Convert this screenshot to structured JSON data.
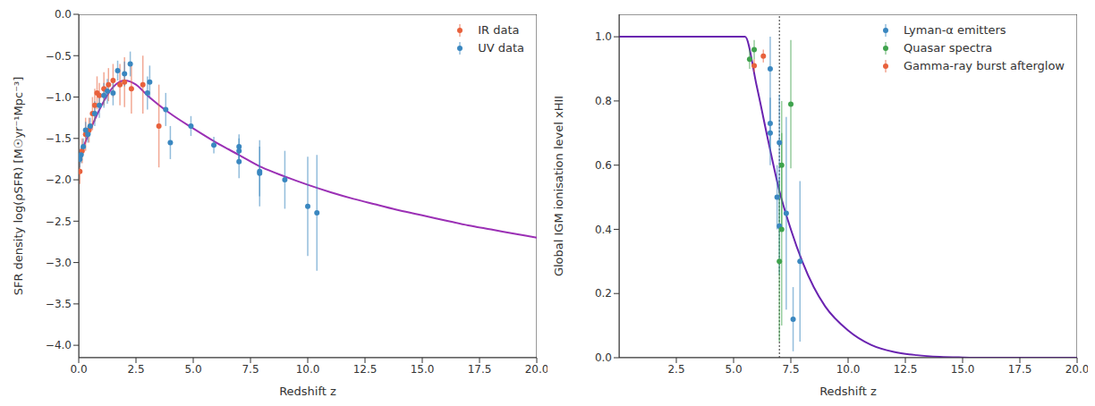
{
  "chart_data": [
    {
      "type": "scatter",
      "x_label": "Redshift z",
      "y_label": "SFR density log(ρSFR) [M☉yr⁻¹Mpc⁻³]",
      "xlim": [
        0,
        20
      ],
      "xticks": [
        {
          "value": 0,
          "label": "0.0"
        },
        2.5,
        {
          "value": 5,
          "label": "5.0"
        },
        7.5,
        {
          "value": 10,
          "label": "10.0"
        },
        12.5,
        {
          "value": 15,
          "label": "15.0"
        },
        17.5,
        {
          "value": 20,
          "label": "20.0"
        }
      ],
      "ylim": [
        -4.15,
        0
      ],
      "yticks": [
        {
          "value": -4,
          "label": "−4.0"
        },
        {
          "value": -3.5,
          "label": "−3.5"
        },
        {
          "value": -3,
          "label": "−3.0"
        },
        {
          "value": -2.5,
          "label": "−2.5"
        },
        {
          "value": -2,
          "label": "−2.0"
        },
        {
          "value": -1.5,
          "label": "−1.5"
        },
        {
          "value": -1,
          "label": "−1.0"
        },
        {
          "value": -0.5,
          "label": "−0.5"
        },
        {
          "value": 0,
          "label": "0.0"
        }
      ],
      "grid": false,
      "legend": "upper right",
      "series": [
        {
          "type": "line",
          "color": "#9b30b5",
          "marker": "none",
          "line_style": "solid",
          "x": [
            0,
            0.5,
            1,
            1.5,
            2,
            2.5,
            3,
            4,
            5,
            6,
            7,
            8,
            9,
            10,
            11,
            12,
            13,
            14,
            15,
            16,
            17,
            18,
            19,
            20
          ],
          "values": [
            -1.75,
            -1.4,
            -1.1,
            -0.88,
            -0.8,
            -0.85,
            -0.98,
            -1.2,
            -1.38,
            -1.55,
            -1.7,
            -1.85,
            -1.96,
            -2.06,
            -2.15,
            -2.23,
            -2.3,
            -2.37,
            -2.43,
            -2.49,
            -2.55,
            -2.6,
            -2.65,
            -2.7
          ]
        },
        {
          "name": "IR data",
          "type": "scatter",
          "color": "#e8613c",
          "marker": "circle",
          "x": [
            0.05,
            0.15,
            0.3,
            0.45,
            0.6,
            0.7,
            0.8,
            0.9,
            1.1,
            1.3,
            1.5,
            1.8,
            2.0,
            2.3,
            2.8,
            3.5
          ],
          "values": [
            -1.9,
            -1.65,
            -1.45,
            -1.4,
            -1.2,
            -1.1,
            -0.95,
            -0.98,
            -0.9,
            -0.85,
            -0.8,
            -0.85,
            -0.82,
            -0.9,
            -0.85,
            -1.35
          ],
          "errors": [
            0.15,
            0.15,
            0.2,
            0.15,
            0.2,
            0.2,
            0.2,
            0.15,
            0.2,
            0.2,
            0.2,
            0.25,
            0.3,
            0.3,
            0.35,
            0.5
          ]
        },
        {
          "name": "UV data",
          "type": "scatter",
          "color": "#3a87c0",
          "marker": "circle",
          "x": [
            0.05,
            0.1,
            0.2,
            0.3,
            0.4,
            0.5,
            0.7,
            0.9,
            1.1,
            1.25,
            1.5,
            1.7,
            2.0,
            2.25,
            3.0,
            3.1,
            3.8,
            4.0,
            4.9,
            5.9,
            7.0,
            7.0,
            7.0,
            7.9,
            7.9,
            9.0,
            10.0,
            10.4
          ],
          "values": [
            -1.75,
            -1.7,
            -1.6,
            -1.4,
            -1.45,
            -1.35,
            -1.2,
            -1.1,
            -0.98,
            -0.93,
            -0.95,
            -0.68,
            -0.72,
            -0.6,
            -0.95,
            -0.82,
            -1.15,
            -1.55,
            -1.35,
            -1.58,
            -1.6,
            -1.65,
            -1.78,
            -1.9,
            -1.92,
            -2.0,
            -2.32,
            -2.4
          ],
          "errors": [
            0.1,
            0.1,
            0.1,
            0.1,
            0.1,
            0.1,
            0.15,
            0.15,
            0.15,
            0.15,
            0.15,
            0.12,
            0.15,
            0.15,
            0.2,
            0.2,
            0.2,
            0.2,
            0.12,
            0.1,
            0.15,
            0.15,
            0.2,
            0.3,
            0.4,
            0.35,
            0.6,
            0.7
          ]
        }
      ]
    },
    {
      "type": "scatter",
      "x_label": "Redshift z",
      "y_label": "Global IGM ionisation level xHII",
      "xlim": [
        0,
        20
      ],
      "xticks": [
        2.5,
        {
          "value": 5,
          "label": "5.0"
        },
        7.5,
        {
          "value": 10,
          "label": "10.0"
        },
        12.5,
        {
          "value": 15,
          "label": "15.0"
        },
        17.5,
        {
          "value": 20,
          "label": "20.0"
        }
      ],
      "ylim": [
        0,
        1.07
      ],
      "yticks": [
        {
          "value": 0,
          "label": "0.0"
        },
        0.2,
        0.4,
        0.6,
        0.8,
        {
          "value": 1,
          "label": "1.0"
        }
      ],
      "grid": false,
      "legend": "upper right",
      "vline": 7,
      "series": [
        {
          "type": "line",
          "color": "#6a23b0",
          "marker": "none",
          "line_style": "solid",
          "x": [
            0,
            5.5,
            6,
            6.5,
            7,
            7.5,
            8,
            8.5,
            9,
            10,
            11,
            12,
            13,
            14,
            15,
            16,
            20
          ],
          "values": [
            1,
            1,
            0.85,
            0.68,
            0.52,
            0.4,
            0.3,
            0.22,
            0.16,
            0.085,
            0.04,
            0.018,
            0.008,
            0.003,
            0.001,
            0,
            0
          ]
        },
        {
          "name": "Lyman-α emitters",
          "type": "scatter",
          "color": "#3a87c0",
          "marker": "circle",
          "x": [
            6.6,
            6.6,
            6.6,
            6.9,
            7.0,
            7.0,
            7.3,
            7.6,
            7.9
          ],
          "values": [
            0.9,
            0.7,
            0.73,
            0.5,
            0.67,
            0.41,
            0.45,
            0.12,
            0.3
          ],
          "errors": [
            0.1,
            0.1,
            0.08,
            0.1,
            0.15,
            0.15,
            0.3,
            0.1,
            0.25
          ]
        },
        {
          "name": "Quasar spectra",
          "type": "scatter",
          "color": "#3fa34d",
          "marker": "circle",
          "x": [
            5.7,
            5.9,
            7.0,
            7.1,
            7.1,
            7.5
          ],
          "values": [
            0.93,
            0.96,
            0.3,
            0.6,
            0.4,
            0.79
          ],
          "errors": [
            0.03,
            0.03,
            0.25,
            0.2,
            0.3,
            0.2
          ]
        },
        {
          "name": "Gamma-ray burst afterglow",
          "type": "scatter",
          "color": "#e8613c",
          "marker": "circle",
          "x": [
            5.9,
            6.3
          ],
          "values": [
            0.91,
            0.94
          ],
          "errors": [
            0.02,
            0.02
          ]
        }
      ]
    }
  ]
}
